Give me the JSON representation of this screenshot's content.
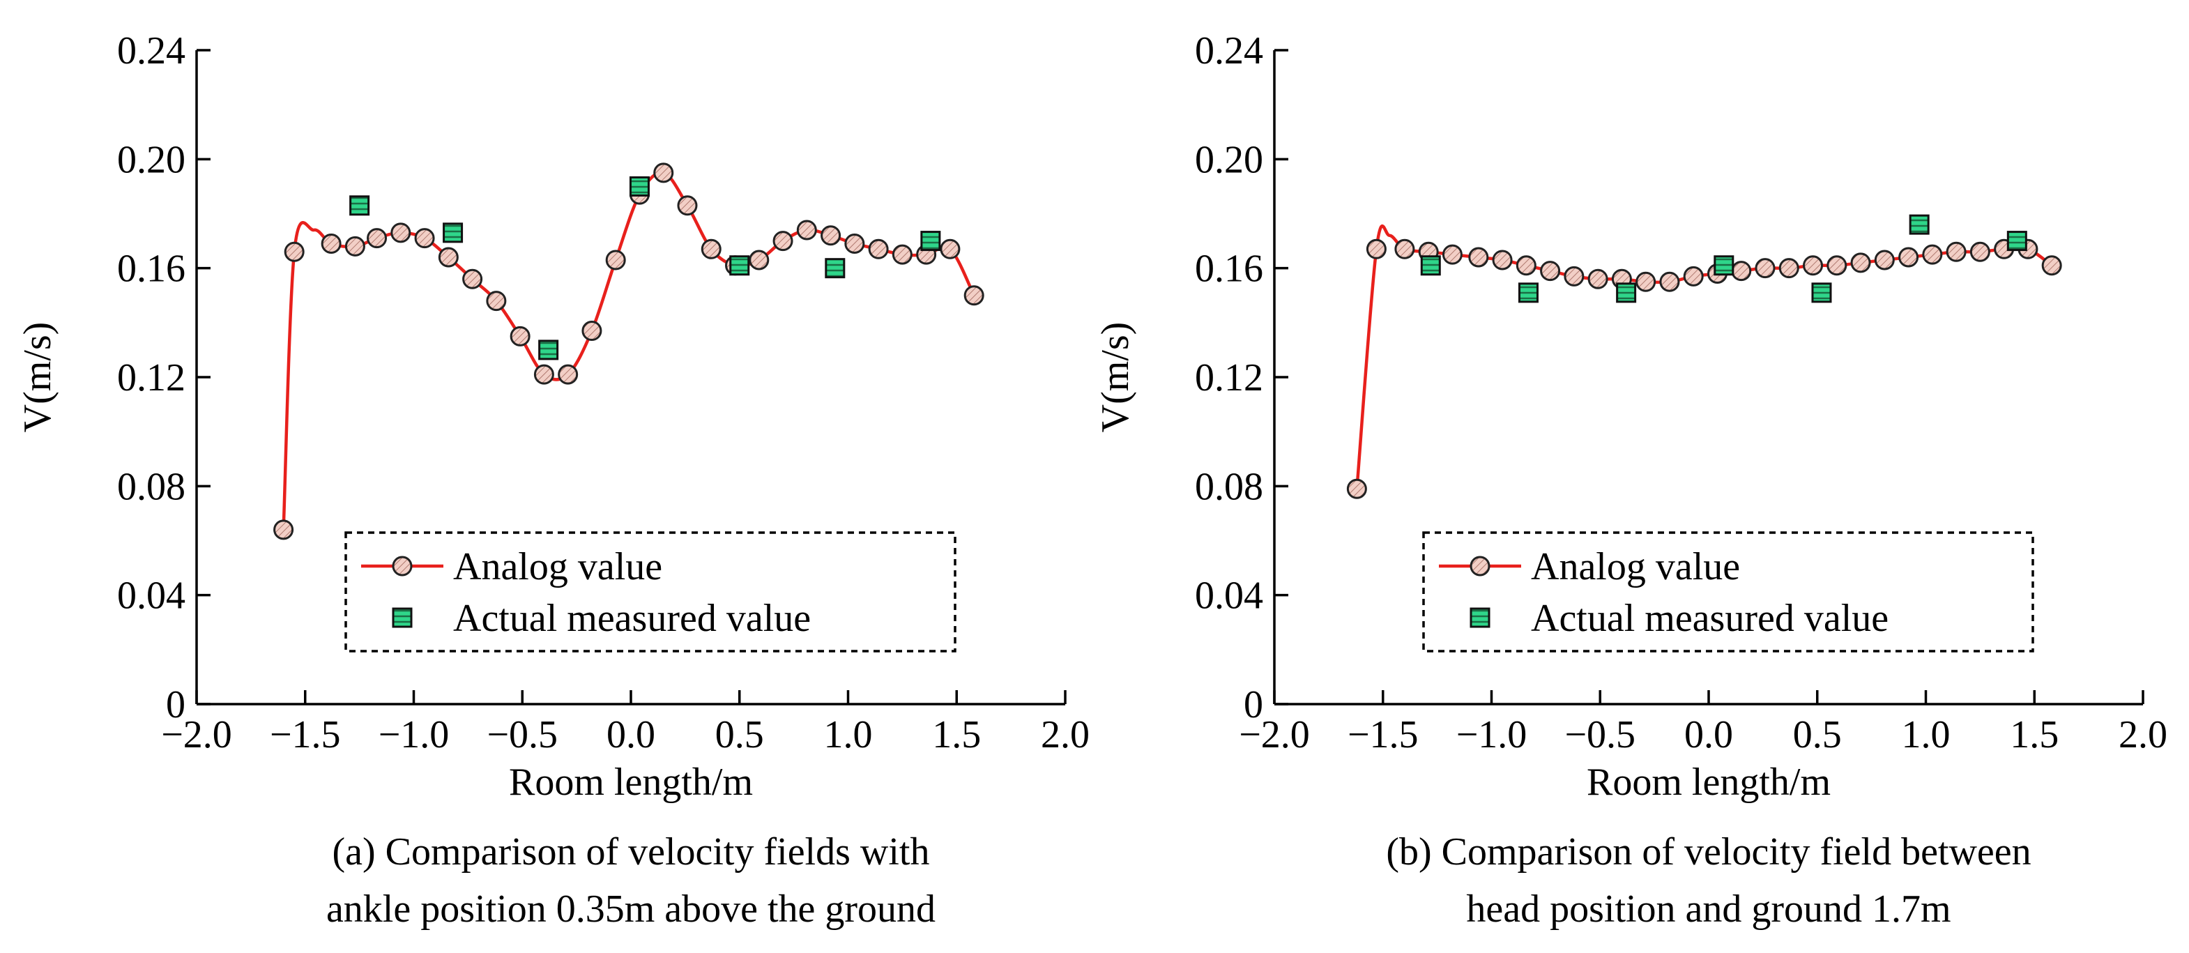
{
  "chart_data": [
    {
      "type": "line",
      "panel_label": "(a)",
      "caption_lines": [
        "(a) Comparison of velocity fields with",
        "ankle position 0.35m above the ground"
      ],
      "xlabel": "Room length/m",
      "ylabel": "V(m/s)",
      "xlim": [
        -2.0,
        2.0
      ],
      "ylim": [
        0,
        0.24
      ],
      "x_ticks": [
        -2.0,
        -1.5,
        -1.0,
        -0.5,
        0.0,
        0.5,
        1.0,
        1.5,
        2.0
      ],
      "x_tick_labels": [
        "−2.0",
        "−1.5",
        "−1.0",
        "−0.5",
        "0.0",
        "0.5",
        "1.0",
        "1.5",
        "2.0"
      ],
      "y_ticks": [
        0,
        0.04,
        0.08,
        0.12,
        0.16,
        0.2,
        0.24
      ],
      "y_tick_labels": [
        "0",
        "0.04",
        "0.08",
        "0.12",
        "0.16",
        "0.20",
        "0.24"
      ],
      "grid": false,
      "legend": {
        "position": "bottom-center",
        "entries": [
          "Analog value",
          "Actual measured value"
        ]
      },
      "series": [
        {
          "name": "Analog value",
          "kind": "line-markers",
          "color": "#e8201c",
          "marker_fill": "#f2cfc6",
          "x": [
            -1.6,
            -1.55,
            -1.46,
            -1.38,
            -1.27,
            -1.17,
            -1.06,
            -0.95,
            -0.84,
            -0.73,
            -0.62,
            -0.51,
            -0.4,
            -0.29,
            -0.18,
            -0.07,
            0.04,
            0.15,
            0.26,
            0.37,
            0.48,
            0.59,
            0.7,
            0.81,
            0.92,
            1.03,
            1.14,
            1.25,
            1.36,
            1.47,
            1.58
          ],
          "y": [
            0.064,
            0.166,
            0.174,
            0.169,
            0.168,
            0.171,
            0.173,
            0.171,
            0.164,
            0.156,
            0.148,
            0.135,
            0.121,
            0.121,
            0.137,
            0.163,
            0.187,
            0.195,
            0.183,
            0.167,
            0.161,
            0.163,
            0.17,
            0.174,
            0.172,
            0.169,
            0.167,
            0.165,
            0.165,
            0.167,
            0.15
          ],
          "marker_x": [
            -1.6,
            -1.55,
            -1.38,
            -1.27,
            -1.17,
            -1.06,
            -0.95,
            -0.84,
            -0.73,
            -0.62,
            -0.51,
            -0.4,
            -0.29,
            -0.18,
            -0.07,
            0.04,
            0.15,
            0.26,
            0.37,
            0.48,
            0.59,
            0.7,
            0.81,
            0.92,
            1.03,
            1.14,
            1.25,
            1.36,
            1.47,
            1.58
          ],
          "marker_y": [
            0.064,
            0.166,
            0.169,
            0.168,
            0.171,
            0.173,
            0.171,
            0.164,
            0.156,
            0.148,
            0.135,
            0.121,
            0.121,
            0.137,
            0.163,
            0.187,
            0.195,
            0.183,
            0.167,
            0.161,
            0.163,
            0.17,
            0.174,
            0.172,
            0.169,
            0.167,
            0.165,
            0.165,
            0.167,
            0.15
          ]
        },
        {
          "name": "Actual measured value",
          "kind": "markers",
          "color": "#2fd68a",
          "x": [
            -1.25,
            -0.82,
            -0.38,
            0.04,
            0.5,
            0.94,
            1.38
          ],
          "y": [
            0.183,
            0.173,
            0.13,
            0.19,
            0.161,
            0.16,
            0.17
          ]
        }
      ]
    },
    {
      "type": "line",
      "panel_label": "(b)",
      "caption_lines": [
        "(b) Comparison of velocity field between",
        "head position and ground 1.7m"
      ],
      "xlabel": "Room length/m",
      "ylabel": "V(m/s)",
      "xlim": [
        -2.0,
        2.0
      ],
      "ylim": [
        0,
        0.24
      ],
      "x_ticks": [
        -2.0,
        -1.5,
        -1.0,
        -0.5,
        0.0,
        0.5,
        1.0,
        1.5,
        2.0
      ],
      "x_tick_labels": [
        "−2.0",
        "−1.5",
        "−1.0",
        "−0.5",
        "0.0",
        "0.5",
        "1.0",
        "1.5",
        "2.0"
      ],
      "y_ticks": [
        0,
        0.04,
        0.08,
        0.12,
        0.16,
        0.2,
        0.24
      ],
      "y_tick_labels": [
        "0",
        "0.04",
        "0.08",
        "0.12",
        "0.16",
        "0.20",
        "0.24"
      ],
      "grid": false,
      "legend": {
        "position": "bottom-center",
        "entries": [
          "Analog value",
          "Actual measured value"
        ]
      },
      "series": [
        {
          "name": "Analog value",
          "kind": "line-markers",
          "color": "#e8201c",
          "marker_fill": "#f2cfc6",
          "x": [
            -1.62,
            -1.53,
            -1.47,
            -1.4,
            -1.29,
            -1.18,
            -1.06,
            -0.95,
            -0.84,
            -0.73,
            -0.62,
            -0.51,
            -0.4,
            -0.29,
            -0.18,
            -0.07,
            0.04,
            0.15,
            0.26,
            0.37,
            0.48,
            0.59,
            0.7,
            0.81,
            0.92,
            1.03,
            1.14,
            1.25,
            1.36,
            1.47,
            1.58
          ],
          "y": [
            0.079,
            0.167,
            0.172,
            0.167,
            0.166,
            0.165,
            0.164,
            0.163,
            0.161,
            0.159,
            0.157,
            0.156,
            0.156,
            0.155,
            0.155,
            0.157,
            0.158,
            0.159,
            0.16,
            0.16,
            0.161,
            0.161,
            0.162,
            0.163,
            0.164,
            0.165,
            0.166,
            0.166,
            0.167,
            0.167,
            0.161
          ],
          "marker_x": [
            -1.62,
            -1.53,
            -1.4,
            -1.29,
            -1.18,
            -1.06,
            -0.95,
            -0.84,
            -0.73,
            -0.62,
            -0.51,
            -0.4,
            -0.29,
            -0.18,
            -0.07,
            0.04,
            0.15,
            0.26,
            0.37,
            0.48,
            0.59,
            0.7,
            0.81,
            0.92,
            1.03,
            1.14,
            1.25,
            1.36,
            1.47,
            1.58
          ],
          "marker_y": [
            0.079,
            0.167,
            0.167,
            0.166,
            0.165,
            0.164,
            0.163,
            0.161,
            0.159,
            0.157,
            0.156,
            0.156,
            0.155,
            0.155,
            0.157,
            0.158,
            0.159,
            0.16,
            0.16,
            0.161,
            0.161,
            0.162,
            0.163,
            0.164,
            0.165,
            0.166,
            0.166,
            0.167,
            0.167,
            0.161
          ]
        },
        {
          "name": "Actual measured value",
          "kind": "markers",
          "color": "#2fd68a",
          "x": [
            -1.28,
            -0.83,
            -0.38,
            0.07,
            0.52,
            0.97,
            1.42
          ],
          "y": [
            0.161,
            0.151,
            0.151,
            0.161,
            0.151,
            0.176,
            0.17
          ]
        }
      ]
    }
  ]
}
